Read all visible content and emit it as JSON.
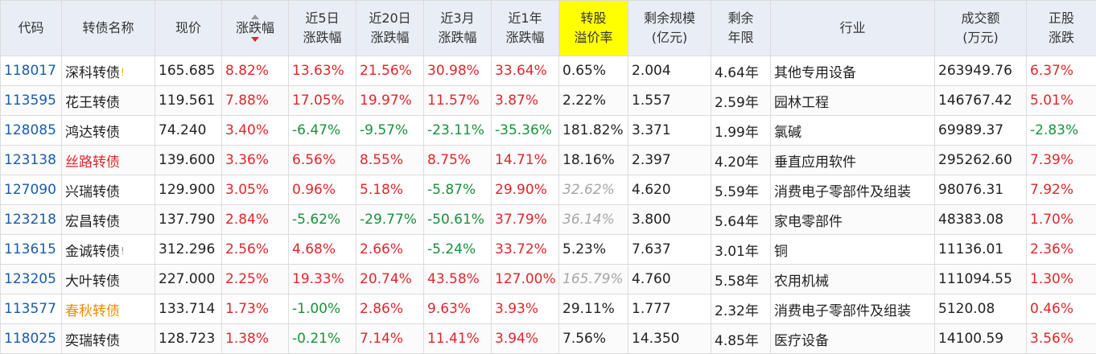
{
  "header": {
    "code": "代码",
    "name": "转债名称",
    "price": "现价",
    "change": "涨跌幅",
    "chg5d": [
      "近5日",
      "涨跌幅"
    ],
    "chg20d": [
      "近20日",
      "涨跌幅"
    ],
    "chg3m": [
      "近3月",
      "涨跌幅"
    ],
    "chg1y": [
      "近1年",
      "涨跌幅"
    ],
    "premium": [
      "转股",
      "溢价率"
    ],
    "remaining_size": [
      "剩余规模",
      "(亿元)"
    ],
    "remaining_years": [
      "剩余",
      "年限"
    ],
    "industry": "行业",
    "volume": [
      "成交额",
      "(万元)"
    ],
    "stock_change": [
      "正股",
      "涨跌"
    ]
  },
  "colors": {
    "header_bg": "#e9eef6",
    "highlight_header": "#ffff00",
    "up": "#e0262a",
    "down": "#18913a",
    "code": "#1a5ca8",
    "name_orange": "#f08c00",
    "muted": "#a6a6a6"
  },
  "sort": {
    "column": "change",
    "direction": "desc"
  },
  "rows": [
    {
      "code": "118017",
      "name": "深科转债",
      "flag": "!",
      "price": "165.685",
      "change": "8.82%",
      "chg5d": "13.63%",
      "chg20d": "21.56%",
      "chg3m": "30.98%",
      "chg1y": "33.64%",
      "premium": "0.65%",
      "size": "2.004",
      "years": "4.64年",
      "industry": "其他专用设备",
      "volume": "263949.76",
      "stock_change": "6.37%"
    },
    {
      "code": "113595",
      "name": "花王转债",
      "flag": "",
      "price": "119.561",
      "change": "7.88%",
      "chg5d": "17.05%",
      "chg20d": "19.97%",
      "chg3m": "11.57%",
      "chg1y": "3.87%",
      "premium": "2.22%",
      "size": "1.557",
      "years": "2.59年",
      "industry": "园林工程",
      "volume": "146767.42",
      "stock_change": "5.01%"
    },
    {
      "code": "128085",
      "name": "鸿达转债",
      "flag": "",
      "price": "74.240",
      "change": "3.40%",
      "chg5d": "-6.47%",
      "chg20d": "-9.57%",
      "chg3m": "-23.11%",
      "chg1y": "-35.36%",
      "premium": "181.82%",
      "size": "3.371",
      "years": "1.99年",
      "industry": "氯碱",
      "volume": "69989.37",
      "stock_change": "-2.83%"
    },
    {
      "code": "123138",
      "name": "丝路转债",
      "flag": "",
      "price": "139.600",
      "change": "3.36%",
      "chg5d": "6.56%",
      "chg20d": "8.55%",
      "chg3m": "8.75%",
      "chg1y": "14.71%",
      "premium": "18.16%",
      "size": "2.397",
      "years": "4.20年",
      "industry": "垂直应用软件",
      "volume": "295262.60",
      "stock_change": "7.39%"
    },
    {
      "code": "127090",
      "name": "兴瑞转债",
      "flag": "",
      "price": "129.900",
      "change": "3.05%",
      "chg5d": "0.96%",
      "chg20d": "5.18%",
      "chg3m": "-5.87%",
      "chg1y": "29.90%",
      "premium": "32.62%",
      "size": "4.620",
      "years": "5.59年",
      "industry": "消费电子零部件及组装",
      "volume": "98076.31",
      "stock_change": "7.92%"
    },
    {
      "code": "123218",
      "name": "宏昌转债",
      "flag": "",
      "price": "137.790",
      "change": "2.84%",
      "chg5d": "-5.62%",
      "chg20d": "-29.77%",
      "chg3m": "-50.61%",
      "chg1y": "37.79%",
      "premium": "36.14%",
      "size": "3.800",
      "years": "5.64年",
      "industry": "家电零部件",
      "volume": "48383.08",
      "stock_change": "1.70%"
    },
    {
      "code": "113615",
      "name": "金诚转债",
      "flag": "!",
      "price": "312.296",
      "change": "2.56%",
      "chg5d": "4.68%",
      "chg20d": "2.66%",
      "chg3m": "-5.24%",
      "chg1y": "33.72%",
      "premium": "5.23%",
      "size": "7.637",
      "years": "3.01年",
      "industry": "铜",
      "volume": "11136.01",
      "stock_change": "2.36%"
    },
    {
      "code": "123205",
      "name": "大叶转债",
      "flag": "",
      "price": "227.000",
      "change": "2.25%",
      "chg5d": "19.33%",
      "chg20d": "20.74%",
      "chg3m": "43.58%",
      "chg1y": "127.00%",
      "premium": "165.79%",
      "size": "4.760",
      "years": "5.58年",
      "industry": "农用机械",
      "volume": "111094.55",
      "stock_change": "1.30%"
    },
    {
      "code": "113577",
      "name": "春秋转债",
      "flag": "",
      "price": "133.714",
      "change": "1.73%",
      "chg5d": "-1.00%",
      "chg20d": "2.86%",
      "chg3m": "9.63%",
      "chg1y": "3.93%",
      "premium": "29.11%",
      "size": "1.777",
      "years": "2.32年",
      "industry": "消费电子零部件及组装",
      "volume": "5120.08",
      "stock_change": "0.46%"
    },
    {
      "code": "118025",
      "name": "奕瑞转债",
      "flag": "",
      "price": "128.723",
      "change": "1.38%",
      "chg5d": "-0.21%",
      "chg20d": "7.14%",
      "chg3m": "11.41%",
      "chg1y": "3.94%",
      "premium": "7.56%",
      "size": "14.350",
      "years": "4.85年",
      "industry": "医疗设备",
      "volume": "14100.59",
      "stock_change": "3.56%"
    }
  ]
}
